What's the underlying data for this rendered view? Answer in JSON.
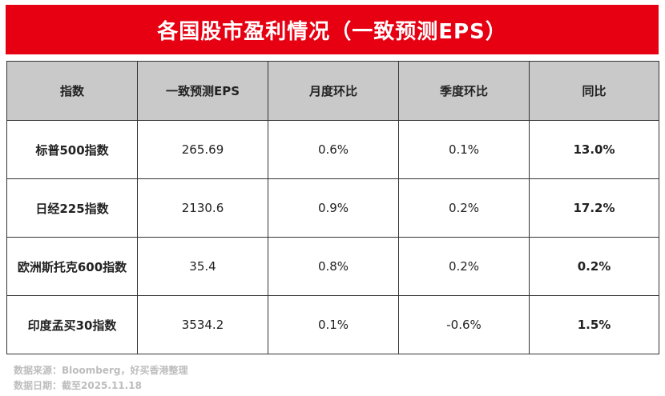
{
  "title": "各国股市盈利情况（一致预测EPS）",
  "table": {
    "headers": [
      "指数",
      "一致预测EPS",
      "月度环比",
      "季度环比",
      "同比"
    ],
    "rows": [
      [
        "标普500指数",
        "265.69",
        "0.6%",
        "0.1%",
        "13.0%"
      ],
      [
        "日经225指数",
        "2130.6",
        "0.9%",
        "0.2%",
        "17.2%"
      ],
      [
        "欧洲斯托克600指数",
        "35.4",
        "0.8%",
        "0.2%",
        "0.2%"
      ],
      [
        "印度孟买30指数",
        "3534.2",
        "0.1%",
        "-0.6%",
        "1.5%"
      ]
    ]
  },
  "footer": {
    "source": "数据来源：Bloomberg，好买香港整理",
    "date": "数据日期：截至2025.11.18"
  },
  "colors": {
    "title_bg": "#e60012",
    "header_bg": "#c9c9c9",
    "positive_highlight": "#e60012"
  }
}
